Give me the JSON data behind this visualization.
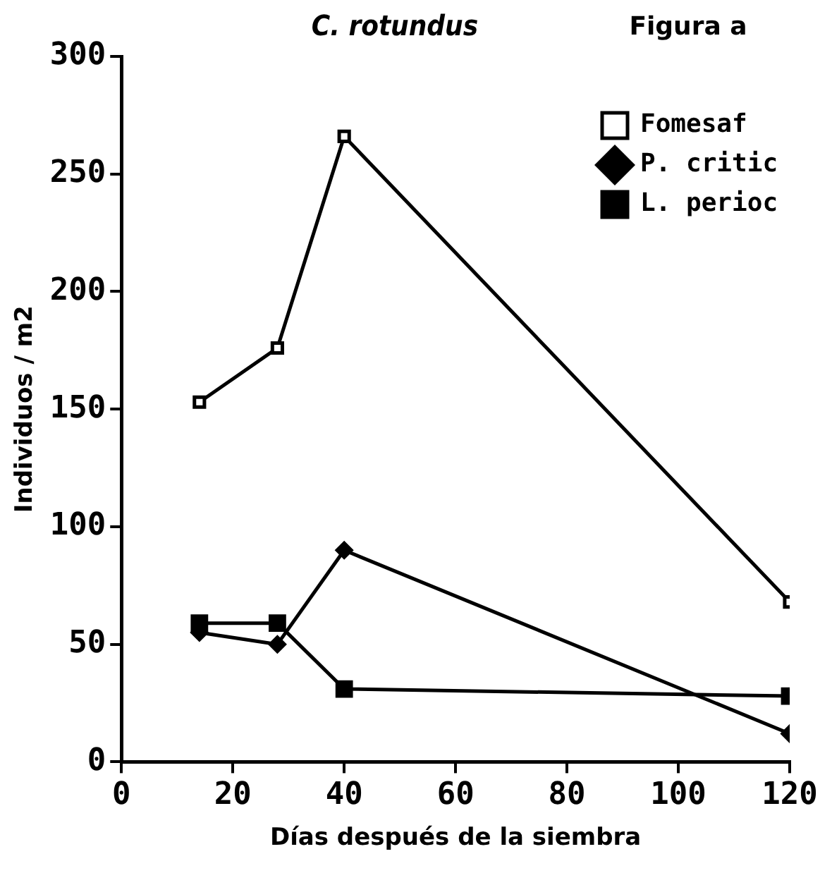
{
  "chart_data": {
    "type": "line",
    "title": "C. rotundus",
    "subtitle": "Figura a",
    "xlabel": "Días después de la siembra",
    "ylabel": "Individuos / m2",
    "x": [
      14,
      28,
      40,
      120
    ],
    "series": [
      {
        "name": "Fomesaf",
        "color": "#000000",
        "marker": "square_open",
        "values": [
          153,
          176,
          266,
          68
        ]
      },
      {
        "name": "P. critic",
        "color": "#000000",
        "marker": "diamond",
        "values": [
          55,
          50,
          90,
          12
        ]
      },
      {
        "name": "L. perioc",
        "color": "#000000",
        "marker": "square",
        "values": [
          59,
          59,
          31,
          28
        ]
      }
    ],
    "xlim": [
      0,
      120
    ],
    "xticks": [
      0,
      20,
      40,
      60,
      80,
      100,
      120
    ],
    "ylim": [
      0,
      300
    ],
    "yticks": [
      0,
      50,
      100,
      150,
      200,
      250,
      300
    ],
    "grid": false,
    "legend": "top right",
    "line_style": "solid"
  }
}
